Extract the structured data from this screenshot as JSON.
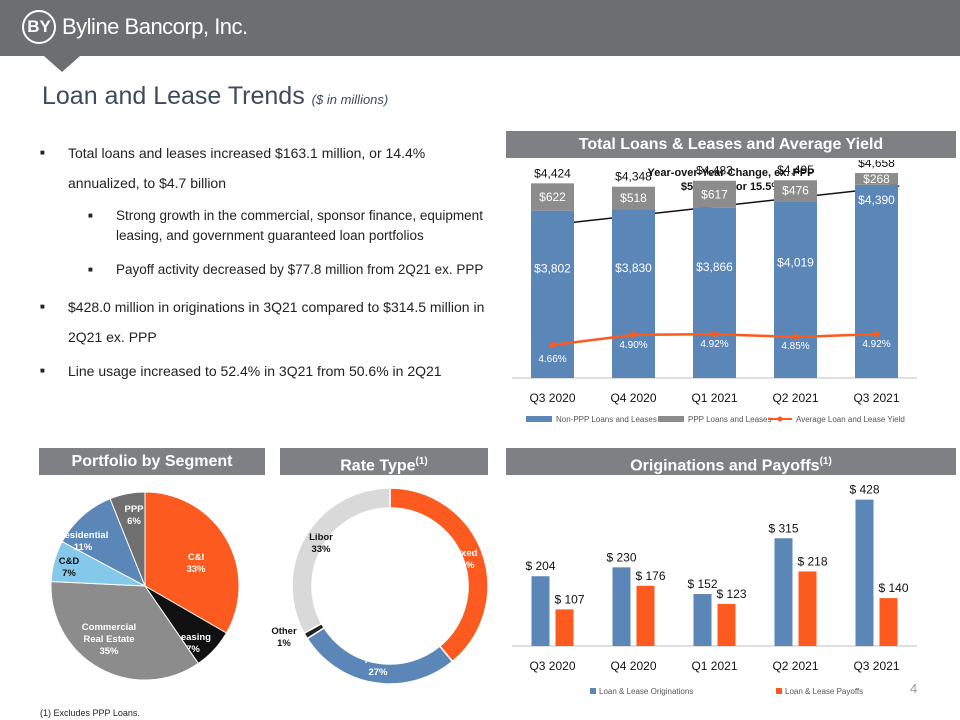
{
  "header": {
    "logo_mark": "BY",
    "logo_text": "Byline Bancorp, Inc.",
    "page_number": "4"
  },
  "title": {
    "main": "Loan and Lease Trends",
    "sub": "($ in millions)"
  },
  "bullets": [
    {
      "text": "Total loans and leases increased $163.1 million, or 14.4% annualized, to $4.7 billion",
      "sub": [
        "Strong growth in the commercial, sponsor finance, equipment leasing, and government guaranteed loan portfolios",
        "Payoff activity decreased by $77.8 million from 2Q21 ex. PPP"
      ]
    },
    {
      "text": "$428.0 million in originations in 3Q21 compared to $314.5 million  in 2Q21 ex. PPP",
      "sub": []
    },
    {
      "text": "Line usage increased to 52.4% in 3Q21 from 50.6% in 2Q21",
      "sub": []
    }
  ],
  "panels": {
    "loans": "Total Loans & Leases and Average Yield",
    "segment": "Portfolio by Segment",
    "rate": "Rate Type",
    "rate_sup": "(1)",
    "orig": "Originations and Payoffs",
    "orig_sup": "(1)"
  },
  "footnote": "(1)      Excludes PPP Loans.",
  "colors": {
    "blue": "#5b87b8",
    "gray": "#8c8c8c",
    "orange": "#fc5a1e",
    "black": "#111111",
    "lightblue": "#85c9ea",
    "lightgray": "#d9d9d9",
    "header": "#7f8083"
  },
  "chart_data": [
    {
      "type": "bar",
      "title": "Total Loans & Leases and Average Yield",
      "annotation": {
        "line1": "Year-over-Year Change, ex. PPP",
        "line2": "$588.0MM or 15.5%"
      },
      "categories": [
        "Q3 2020",
        "Q4 2020",
        "Q1 2021",
        "Q2 2021",
        "Q3 2021"
      ],
      "series": [
        {
          "name": "Non-PPP Loans and Leases",
          "values": [
            3802,
            3830,
            3866,
            4019,
            4390
          ],
          "labels": [
            "$3,802",
            "$3,830",
            "$3,866",
            "$4,019",
            "$4,390"
          ]
        },
        {
          "name": "PPP Loans and Leases",
          "values": [
            622,
            518,
            617,
            476,
            268
          ],
          "labels": [
            "$622",
            "$518",
            "$617",
            "$476",
            "$268"
          ]
        },
        {
          "name": "Average Loan and Lease Yield",
          "values": [
            4.66,
            4.9,
            4.92,
            4.85,
            4.92
          ],
          "labels": [
            "4.66%",
            "4.90%",
            "4.92%",
            "4.85%",
            "4.92%"
          ]
        }
      ],
      "totals": [
        "$4,424",
        "$4,348",
        "$4,483",
        "$4,495",
        "$4,658"
      ],
      "stacked": true,
      "ylim": [
        0,
        5000
      ],
      "y2lim": [
        4.0,
        9.0
      ],
      "grid": false,
      "legend": "bottom"
    },
    {
      "type": "pie",
      "title": "Portfolio by Segment",
      "slices": [
        {
          "label": "C&I",
          "pct": "33%",
          "value": 33,
          "color": "#fc5a1e"
        },
        {
          "label": "Leasing",
          "pct": "7%",
          "value": 7,
          "color": "#111111"
        },
        {
          "label": "Commercial Real Estate",
          "pct": "35%",
          "value": 35,
          "color": "#8c8c8c"
        },
        {
          "label": "C&D",
          "pct": "7%",
          "value": 7,
          "color": "#85c9ea"
        },
        {
          "label": "Residential",
          "pct": "11%",
          "value": 11,
          "color": "#5b87b8"
        },
        {
          "label": "PPP",
          "pct": "6%",
          "value": 6,
          "color": "#6f6f6f"
        }
      ]
    },
    {
      "type": "pie",
      "title": "Rate Type",
      "donut": true,
      "slices": [
        {
          "label": "Fixed",
          "pct": "39%",
          "value": 39,
          "color": "#fc5a1e"
        },
        {
          "label": "Prime",
          "pct": "27%",
          "value": 27,
          "color": "#5b87b8"
        },
        {
          "label": "Other",
          "pct": "1%",
          "value": 1,
          "color": "#222222"
        },
        {
          "label": "Libor",
          "pct": "33%",
          "value": 33,
          "color": "#d9d9d9"
        }
      ]
    },
    {
      "type": "bar",
      "title": "Originations and Payoffs",
      "categories": [
        "Q3 2020",
        "Q4 2020",
        "Q1 2021",
        "Q2 2021",
        "Q3 2021"
      ],
      "series": [
        {
          "name": "Loan & Lease Originations",
          "values": [
            204,
            230,
            152,
            315,
            428
          ],
          "labels": [
            "$ 204",
            "$ 230",
            "$ 152",
            "$ 315",
            "$ 428"
          ]
        },
        {
          "name": "Loan & Lease Payoffs",
          "values": [
            107,
            176,
            123,
            218,
            140
          ],
          "labels": [
            "$ 107",
            "$ 176",
            "$ 123",
            "$ 218",
            "$ 140"
          ]
        }
      ],
      "ylim": [
        0,
        450
      ],
      "grid": false,
      "legend": "bottom"
    }
  ]
}
